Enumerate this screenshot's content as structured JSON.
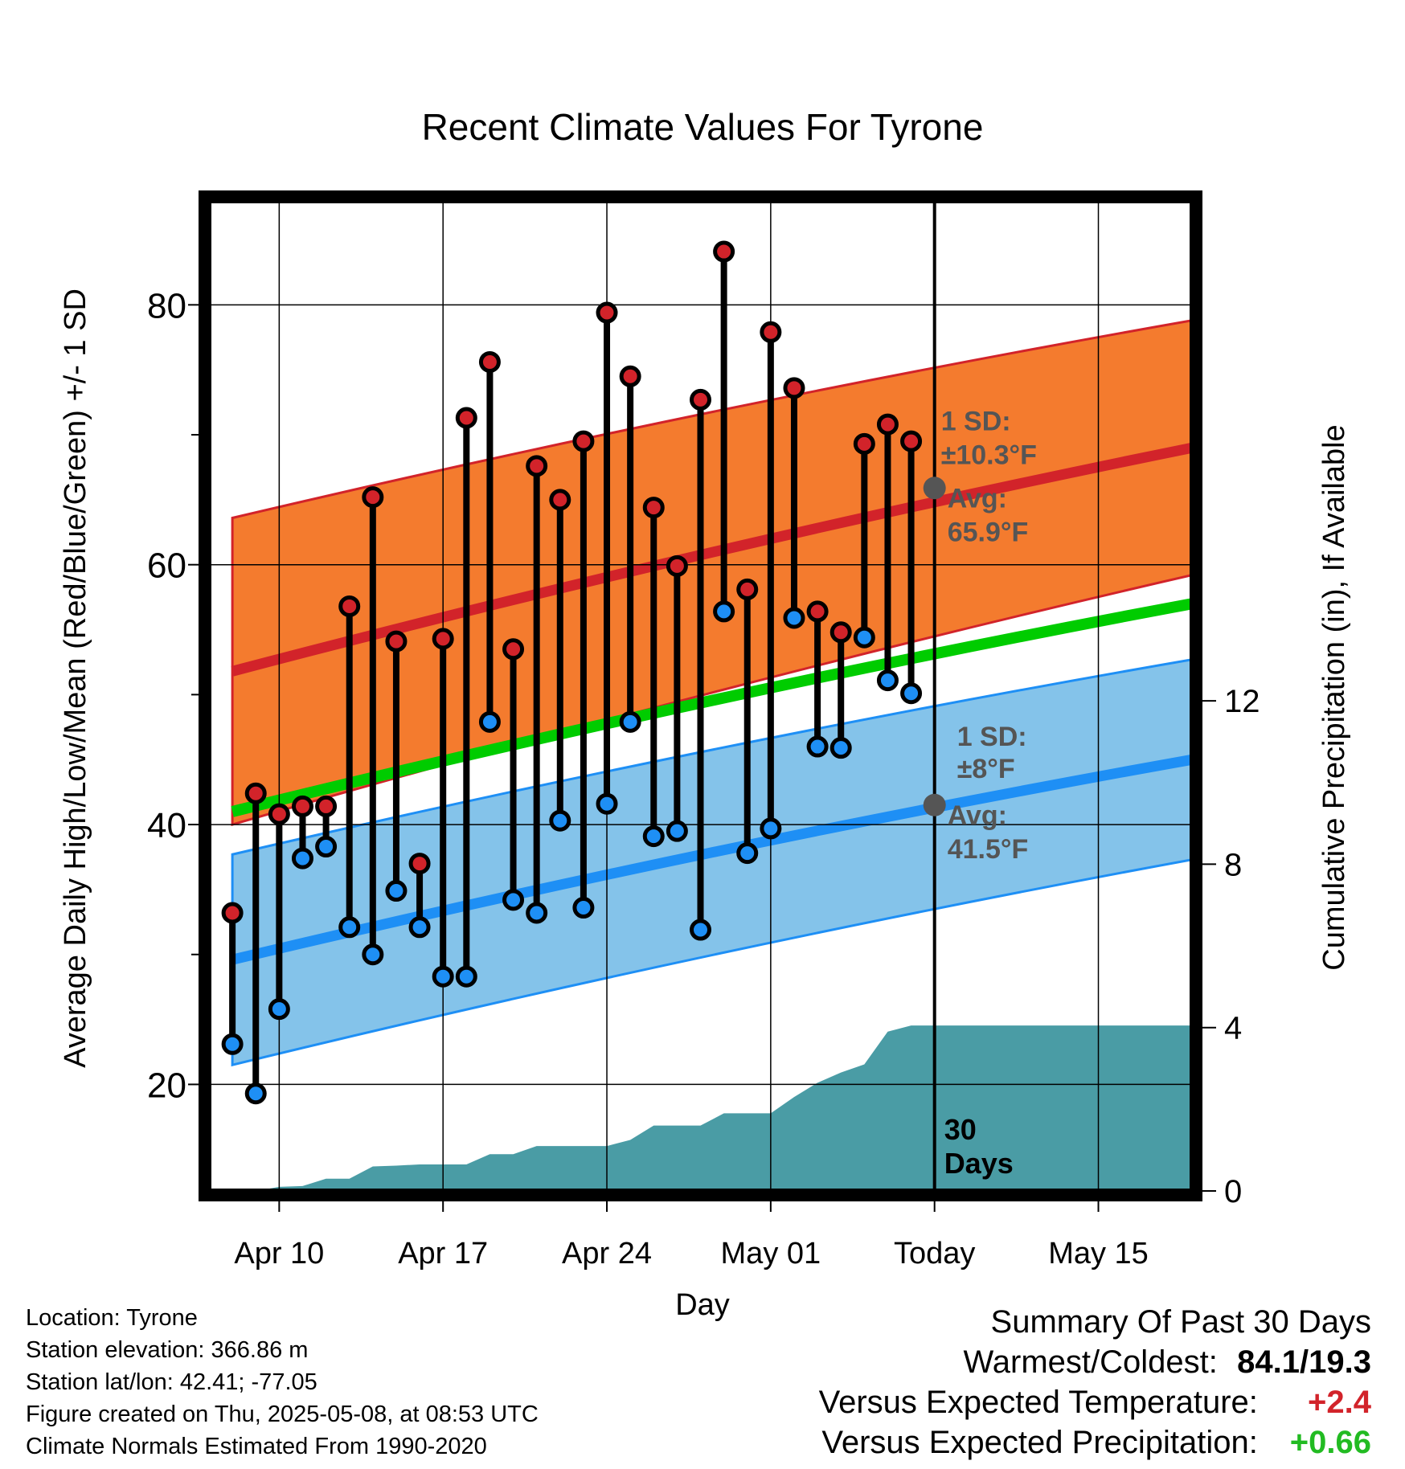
{
  "chart_data": {
    "type": "line",
    "title": "Recent Climate Values For Tyrone",
    "xlabel": "Day",
    "ylabel": "Average Daily High/Low/Mean (Red/Blue/Green) +/- 1 SD",
    "ylabel_right": "Cumulative Precipitation (in), If Available",
    "x_ticks": [
      "Apr 10",
      "Apr 17",
      "Apr 24",
      "May 01",
      "Today",
      "May 15"
    ],
    "xlim": [
      "2025-04-07",
      "2025-05-19"
    ],
    "ylim": [
      11.8,
      88
    ],
    "y_ticks": [
      20,
      40,
      60,
      80
    ],
    "y2lim": [
      0,
      24.24
    ],
    "y2_ticks": [
      0,
      4,
      8,
      12
    ],
    "grid": true,
    "today": "2025-05-08",
    "period_label": "30\nDays",
    "colors": {
      "high_band": "#f47b2e",
      "high_line": "#d2232a",
      "low_band": "#84c3ea",
      "low_line": "#1e8ff5",
      "mean_line": "#00cc00",
      "precip": "#4a9ca5",
      "high_dot": "#d2232a",
      "low_dot": "#1e8ff5",
      "avg_dot": "#555555"
    },
    "normals": {
      "dates": [
        "2025-04-08",
        "2025-05-19"
      ],
      "high_avg": [
        51.8,
        69.0
      ],
      "high_sd": [
        11.8,
        9.8
      ],
      "low_avg": [
        29.6,
        45.0
      ],
      "low_sd": [
        8.1,
        7.7
      ],
      "mean_avg": [
        41.0,
        57.0
      ]
    },
    "annotations": {
      "high_sd_label": "1 SD:",
      "high_sd_value": "±10.3°F",
      "high_avg_label": "Avg:",
      "high_avg_value": "65.9°F",
      "high_avg": 65.9,
      "low_sd_label": "1 SD:",
      "low_sd_value": "±8°F",
      "low_avg_label": "Avg:",
      "low_avg_value": "41.5°F",
      "low_avg": 41.5
    },
    "series": [
      {
        "name": "High",
        "dates": [
          "2025-04-08",
          "2025-04-09",
          "2025-04-10",
          "2025-04-11",
          "2025-04-12",
          "2025-04-13",
          "2025-04-14",
          "2025-04-15",
          "2025-04-16",
          "2025-04-17",
          "2025-04-18",
          "2025-04-19",
          "2025-04-20",
          "2025-04-21",
          "2025-04-22",
          "2025-04-23",
          "2025-04-24",
          "2025-04-25",
          "2025-04-26",
          "2025-04-27",
          "2025-04-28",
          "2025-04-29",
          "2025-04-30",
          "2025-05-01",
          "2025-05-02",
          "2025-05-03",
          "2025-05-04",
          "2025-05-05",
          "2025-05-06",
          "2025-05-07"
        ],
        "values": [
          33.2,
          42.4,
          40.8,
          41.4,
          41.4,
          56.8,
          65.2,
          54.1,
          37.0,
          54.3,
          71.3,
          75.6,
          53.5,
          67.6,
          65.0,
          69.5,
          79.4,
          74.5,
          64.4,
          59.9,
          72.7,
          84.1,
          58.1,
          77.9,
          73.6,
          56.4,
          54.8,
          69.3,
          70.8,
          69.5
        ]
      },
      {
        "name": "Low",
        "dates": [
          "2025-04-08",
          "2025-04-09",
          "2025-04-10",
          "2025-04-11",
          "2025-04-12",
          "2025-04-13",
          "2025-04-14",
          "2025-04-15",
          "2025-04-16",
          "2025-04-17",
          "2025-04-18",
          "2025-04-19",
          "2025-04-20",
          "2025-04-21",
          "2025-04-22",
          "2025-04-23",
          "2025-04-24",
          "2025-04-25",
          "2025-04-26",
          "2025-04-27",
          "2025-04-28",
          "2025-04-29",
          "2025-04-30",
          "2025-05-01",
          "2025-05-02",
          "2025-05-03",
          "2025-05-04",
          "2025-05-05",
          "2025-05-06",
          "2025-05-07"
        ],
        "values": [
          23.1,
          19.3,
          25.8,
          37.4,
          38.3,
          32.1,
          30.0,
          34.9,
          32.1,
          28.3,
          28.3,
          47.9,
          34.2,
          33.2,
          40.3,
          33.6,
          41.6,
          47.9,
          39.1,
          39.5,
          31.9,
          56.4,
          37.8,
          39.7,
          55.9,
          46.0,
          45.9,
          54.4,
          51.1,
          50.1
        ]
      },
      {
        "name": "Cumulative Precipitation",
        "dates": [
          "2025-04-08",
          "2025-04-09",
          "2025-04-10",
          "2025-04-11",
          "2025-04-12",
          "2025-04-13",
          "2025-04-14",
          "2025-04-15",
          "2025-04-16",
          "2025-04-17",
          "2025-04-18",
          "2025-04-19",
          "2025-04-20",
          "2025-04-21",
          "2025-04-22",
          "2025-04-23",
          "2025-04-24",
          "2025-04-25",
          "2025-04-26",
          "2025-04-27",
          "2025-04-28",
          "2025-04-29",
          "2025-04-30",
          "2025-05-01",
          "2025-05-02",
          "2025-05-03",
          "2025-05-04",
          "2025-05-05",
          "2025-05-06",
          "2025-05-07",
          "2025-05-08",
          "2025-05-19"
        ],
        "values": [
          0.0,
          0.0,
          0.1,
          0.12,
          0.3,
          0.3,
          0.6,
          0.62,
          0.65,
          0.65,
          0.65,
          0.9,
          0.9,
          1.1,
          1.1,
          1.1,
          1.1,
          1.25,
          1.6,
          1.6,
          1.6,
          1.9,
          1.9,
          1.9,
          2.3,
          2.65,
          2.9,
          3.1,
          3.9,
          4.05,
          4.05,
          4.05
        ]
      }
    ]
  },
  "footer": {
    "location": "Location: Tyrone",
    "elevation": "Station elevation: 366.86 m",
    "latlon": "Station lat/lon: 42.41; -77.05",
    "created": "Figure created on Thu, 2025-05-08, at 08:53 UTC",
    "normals": "Climate Normals Estimated From 1990-2020"
  },
  "summary": {
    "title": "Summary Of Past 30 Days",
    "warm_cold_label": "Warmest/Coldest:",
    "warm_cold_value": "84.1/19.3",
    "temp_label": "Versus Expected Temperature:",
    "temp_value": "+2.4",
    "temp_color": "#d2232a",
    "precip_label": "Versus Expected Precipitation:",
    "precip_value": "+0.66",
    "precip_color": "#22bb22"
  }
}
